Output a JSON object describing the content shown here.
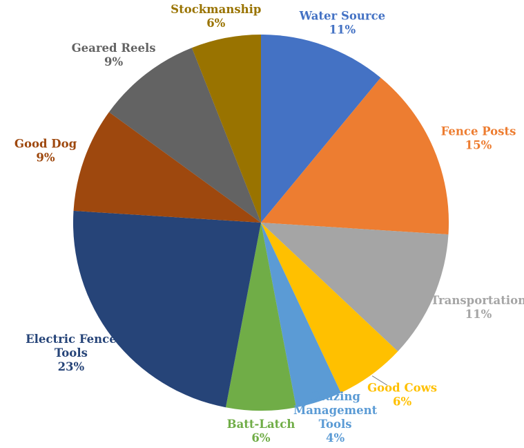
{
  "chart_data": {
    "type": "pie",
    "title": "",
    "legend": "none",
    "background": "#FFFFFF",
    "start_angle_deg": 0,
    "direction": "clockwise",
    "label_format": "{label}\n{value}%",
    "label_position": "outside",
    "slices": [
      {
        "label": "Water Source",
        "value": 11,
        "color": "#4472C4"
      },
      {
        "label": "Fence Posts",
        "value": 15,
        "color": "#ED7D31"
      },
      {
        "label": "Transportation",
        "value": 11,
        "color": "#A5A5A5"
      },
      {
        "label": "Good Cows",
        "value": 6,
        "color": "#FFC000",
        "leader": true
      },
      {
        "label": "Grazing Management Tools",
        "value": 4,
        "color": "#5B9BD5"
      },
      {
        "label": "Batt-Latch",
        "value": 6,
        "color": "#70AD47"
      },
      {
        "label": "Electric Fence Tools",
        "value": 23,
        "color": "#264478"
      },
      {
        "label": "Good Dog",
        "value": 9,
        "color": "#9E480E"
      },
      {
        "label": "Geared Reels",
        "value": 9,
        "color": "#636363"
      },
      {
        "label": "Stockmanship",
        "value": 6,
        "color": "#997300"
      }
    ],
    "leader_line_color": "#7F7F7F"
  }
}
